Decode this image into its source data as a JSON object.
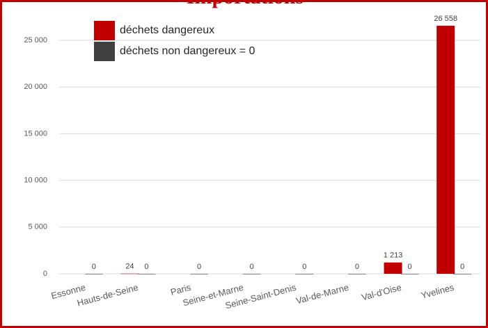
{
  "chart_data": {
    "type": "bar",
    "title": "Importations",
    "categories": [
      "Essonne",
      "Hauts-de-Seine",
      "Paris",
      "Seine-et-Marne",
      "Seine-Saint-Denis",
      "Val-de-Marne",
      "Val-d'Oise",
      "Yvelines"
    ],
    "series": [
      {
        "name": "déchets dangereux",
        "color": "#c00000",
        "values": [
          null,
          24,
          null,
          null,
          null,
          null,
          1213,
          26558
        ],
        "value_labels": [
          null,
          "24",
          null,
          null,
          null,
          null,
          "1 213",
          "26 558"
        ]
      },
      {
        "name": "déchets non dangereux = 0",
        "color": "#404040",
        "values": [
          0,
          0,
          0,
          0,
          0,
          0,
          0,
          0
        ]
      }
    ],
    "ylim": [
      0,
      27500
    ],
    "yticks": [
      0,
      {
        "value": 5000,
        "label": "5 000"
      },
      {
        "value": 10000,
        "label": "10 000"
      },
      {
        "value": 15000,
        "label": "15 000"
      },
      {
        "value": 20000,
        "label": "20 000"
      },
      {
        "value": 25000,
        "label": "25 000"
      }
    ],
    "grid": true,
    "legend": "top-left"
  }
}
